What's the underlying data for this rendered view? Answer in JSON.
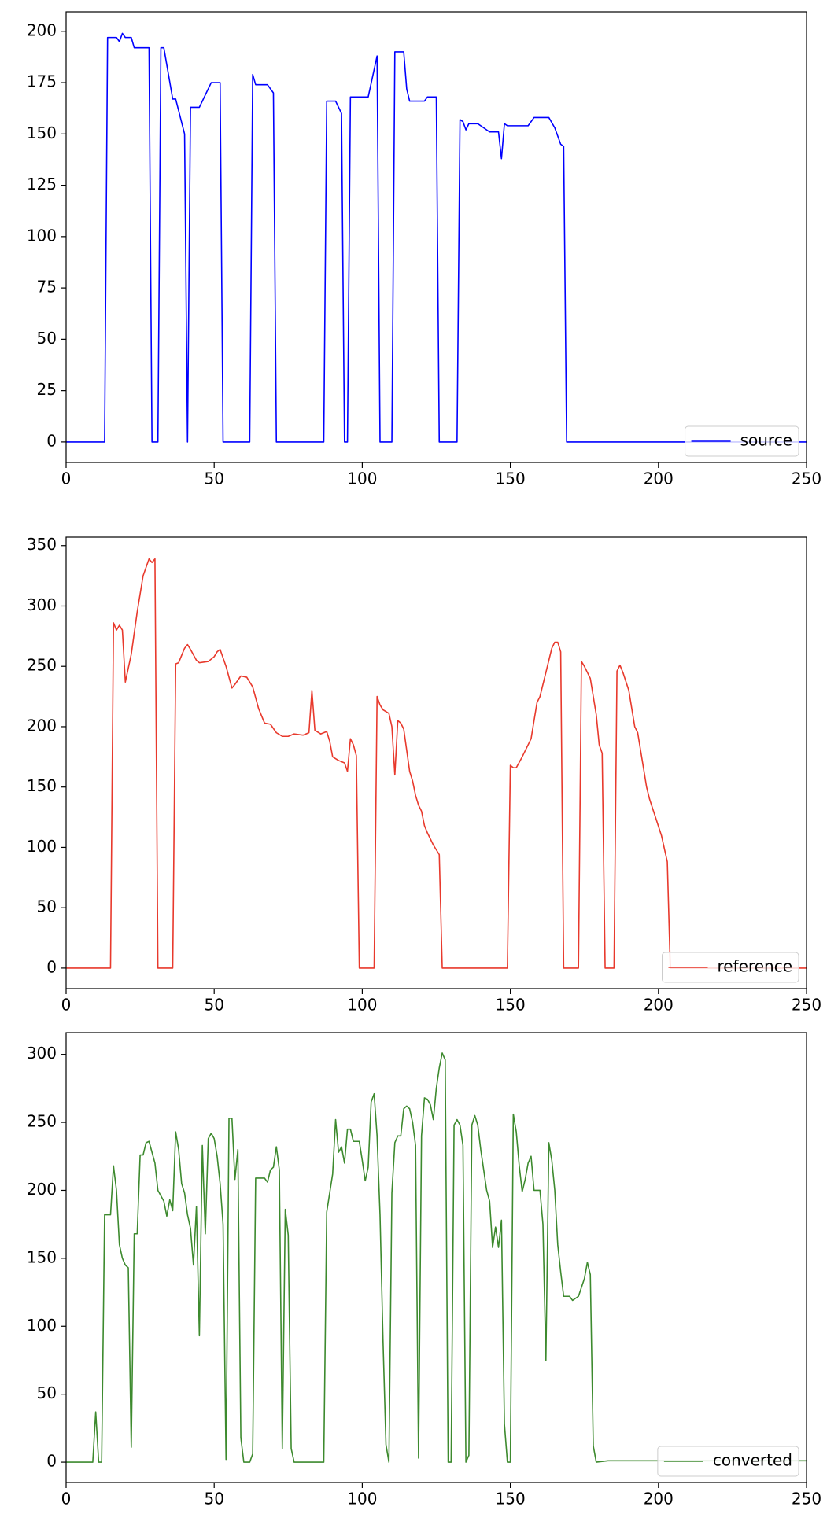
{
  "chart_data": [
    {
      "type": "line",
      "x": [
        0,
        13,
        14,
        17,
        18,
        19,
        20,
        22,
        23,
        28,
        29,
        31,
        32,
        33,
        36,
        37,
        40,
        41,
        42,
        45,
        49,
        52,
        53,
        62,
        63,
        64,
        68,
        70,
        71,
        87,
        88,
        91,
        93,
        94,
        95,
        96,
        102,
        105,
        106,
        110,
        111,
        114,
        115,
        116,
        121,
        122,
        125,
        126,
        132,
        133,
        134,
        135,
        136,
        139,
        142,
        143,
        146,
        147,
        148,
        149,
        156,
        158,
        163,
        165,
        167,
        168,
        169,
        250
      ],
      "series": [
        {
          "name": "source",
          "color": "#0000ff",
          "values": [
            0,
            0,
            197,
            197,
            195,
            199,
            197,
            197,
            192,
            192,
            0,
            0,
            192,
            192,
            167,
            167,
            150,
            0,
            163,
            163,
            175,
            175,
            0,
            0,
            179,
            174,
            174,
            170,
            0,
            0,
            166,
            166,
            160,
            0,
            0,
            168,
            168,
            188,
            0,
            0,
            190,
            190,
            172,
            166,
            166,
            168,
            168,
            0,
            0,
            157,
            156,
            152,
            155,
            155,
            152,
            151,
            151,
            138,
            155,
            154,
            154,
            158,
            158,
            153,
            145,
            144,
            0,
            0
          ]
        }
      ],
      "xlim": [
        0,
        250
      ],
      "ylim": [
        -10,
        209.5
      ],
      "xticks": [
        0,
        50,
        100,
        150,
        200,
        250
      ],
      "yticks": [
        0,
        25,
        50,
        75,
        100,
        125,
        150,
        175,
        200
      ],
      "legend": "lower right"
    },
    {
      "type": "line",
      "x": [
        0,
        15,
        16,
        17,
        18,
        19,
        20,
        22,
        24,
        26,
        28,
        29,
        30,
        31,
        36,
        37,
        38,
        40,
        41,
        42,
        44,
        45,
        48,
        50,
        51,
        52,
        54,
        56,
        57,
        59,
        61,
        63,
        65,
        67,
        69,
        71,
        73,
        75,
        77,
        80,
        82,
        83,
        84,
        86,
        88,
        89,
        90,
        92,
        94,
        95,
        96,
        97,
        98,
        99,
        104,
        105,
        106,
        107,
        109,
        110,
        111,
        112,
        113,
        114,
        116,
        117,
        118,
        119,
        120,
        121,
        122,
        124,
        125,
        126,
        127,
        149,
        150,
        151,
        152,
        154,
        157,
        159,
        160,
        162,
        164,
        165,
        166,
        167,
        168,
        173,
        174,
        175,
        177,
        179,
        180,
        181,
        182,
        185,
        186,
        187,
        188,
        190,
        191,
        192,
        193,
        195,
        196,
        197,
        199,
        201,
        203,
        204,
        250
      ],
      "series": [
        {
          "name": "reference",
          "color": "#e8392c",
          "values": [
            0,
            0,
            286,
            280,
            284,
            280,
            237,
            260,
            295,
            325,
            339,
            336,
            339,
            0,
            0,
            252,
            253,
            265,
            268,
            264,
            255,
            253,
            254,
            258,
            262,
            264,
            250,
            232,
            235,
            242,
            241,
            233,
            215,
            203,
            202,
            195,
            192,
            192,
            194,
            193,
            195,
            230,
            197,
            194,
            196,
            188,
            175,
            172,
            170,
            163,
            190,
            185,
            176,
            0,
            0,
            225,
            218,
            214,
            211,
            200,
            160,
            205,
            203,
            198,
            163,
            155,
            143,
            135,
            130,
            118,
            112,
            102,
            98,
            94,
            0,
            0,
            168,
            166,
            166,
            175,
            190,
            220,
            225,
            245,
            265,
            270,
            270,
            262,
            0,
            0,
            254,
            250,
            240,
            210,
            185,
            178,
            0,
            0,
            246,
            251,
            245,
            230,
            215,
            200,
            195,
            165,
            150,
            140,
            125,
            110,
            88,
            0,
            0
          ]
        }
      ],
      "xlim": [
        0,
        250
      ],
      "ylim": [
        -17,
        357
      ],
      "xticks": [
        0,
        50,
        100,
        150,
        200,
        250
      ],
      "yticks": [
        0,
        50,
        100,
        150,
        200,
        250,
        300,
        350
      ],
      "legend": "lower right"
    },
    {
      "type": "line",
      "x": [
        0,
        9,
        10,
        11,
        12,
        13,
        15,
        16,
        17,
        18,
        19,
        20,
        21,
        22,
        23,
        24,
        25,
        26,
        27,
        28,
        30,
        31,
        33,
        34,
        35,
        36,
        37,
        38,
        39,
        40,
        41,
        42,
        43,
        44,
        45,
        46,
        47,
        48,
        49,
        50,
        51,
        52,
        53,
        54,
        55,
        56,
        57,
        58,
        59,
        60,
        62,
        63,
        64,
        67,
        68,
        69,
        70,
        71,
        72,
        73,
        74,
        75,
        76,
        77,
        87,
        88,
        90,
        91,
        92,
        93,
        94,
        95,
        96,
        97,
        99,
        100,
        101,
        102,
        103,
        104,
        105,
        106,
        107,
        108,
        109,
        110,
        111,
        112,
        113,
        114,
        115,
        116,
        117,
        118,
        119,
        120,
        121,
        122,
        123,
        124,
        125,
        126,
        127,
        128,
        129,
        130,
        131,
        132,
        133,
        134,
        135,
        136,
        137,
        138,
        139,
        140,
        141,
        142,
        143,
        144,
        145,
        146,
        147,
        148,
        149,
        150,
        151,
        152,
        153,
        154,
        155,
        156,
        157,
        158,
        160,
        161,
        162,
        163,
        164,
        165,
        166,
        167,
        168,
        170,
        171,
        173,
        175,
        176,
        177,
        178,
        179,
        183,
        250
      ],
      "series": [
        {
          "name": "converted",
          "color": "#3d8a2e",
          "values": [
            0,
            0,
            37,
            0,
            0,
            182,
            182,
            218,
            200,
            160,
            150,
            145,
            143,
            11,
            168,
            168,
            226,
            226,
            235,
            236,
            220,
            200,
            192,
            181,
            193,
            185,
            243,
            230,
            205,
            198,
            182,
            172,
            145,
            188,
            93,
            233,
            168,
            238,
            242,
            238,
            225,
            205,
            175,
            2,
            253,
            253,
            208,
            230,
            18,
            0,
            0,
            6,
            209,
            209,
            206,
            215,
            217,
            232,
            215,
            10,
            186,
            167,
            10,
            0,
            0,
            184,
            212,
            252,
            228,
            232,
            220,
            245,
            245,
            236,
            236,
            222,
            207,
            217,
            265,
            271,
            240,
            182,
            90,
            13,
            0,
            198,
            235,
            240,
            240,
            260,
            262,
            260,
            250,
            233,
            3,
            240,
            268,
            267,
            263,
            252,
            275,
            290,
            301,
            296,
            0,
            0,
            248,
            252,
            248,
            233,
            0,
            5,
            248,
            255,
            248,
            230,
            215,
            200,
            192,
            158,
            173,
            158,
            178,
            28,
            0,
            0,
            256,
            243,
            218,
            199,
            208,
            220,
            225,
            200,
            200,
            175,
            75,
            235,
            222,
            200,
            160,
            140,
            122,
            122,
            119,
            122,
            135,
            147,
            138,
            12,
            0,
            1,
            1
          ]
        }
      ],
      "xlim": [
        0,
        250
      ],
      "ylim": [
        -15,
        316
      ],
      "xticks": [
        0,
        50,
        100,
        150,
        200,
        250
      ],
      "yticks": [
        0,
        50,
        100,
        150,
        200,
        250,
        300
      ],
      "legend": "lower right"
    }
  ]
}
